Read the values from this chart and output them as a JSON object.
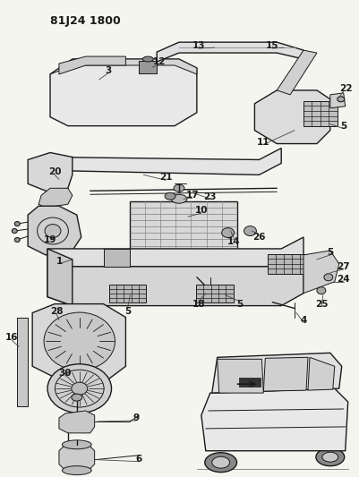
{
  "title": "81J24 1800",
  "bg_color": "#f5f5f0",
  "line_color": "#1a1a1a",
  "fig_width": 4.01,
  "fig_height": 5.33,
  "dpi": 100
}
